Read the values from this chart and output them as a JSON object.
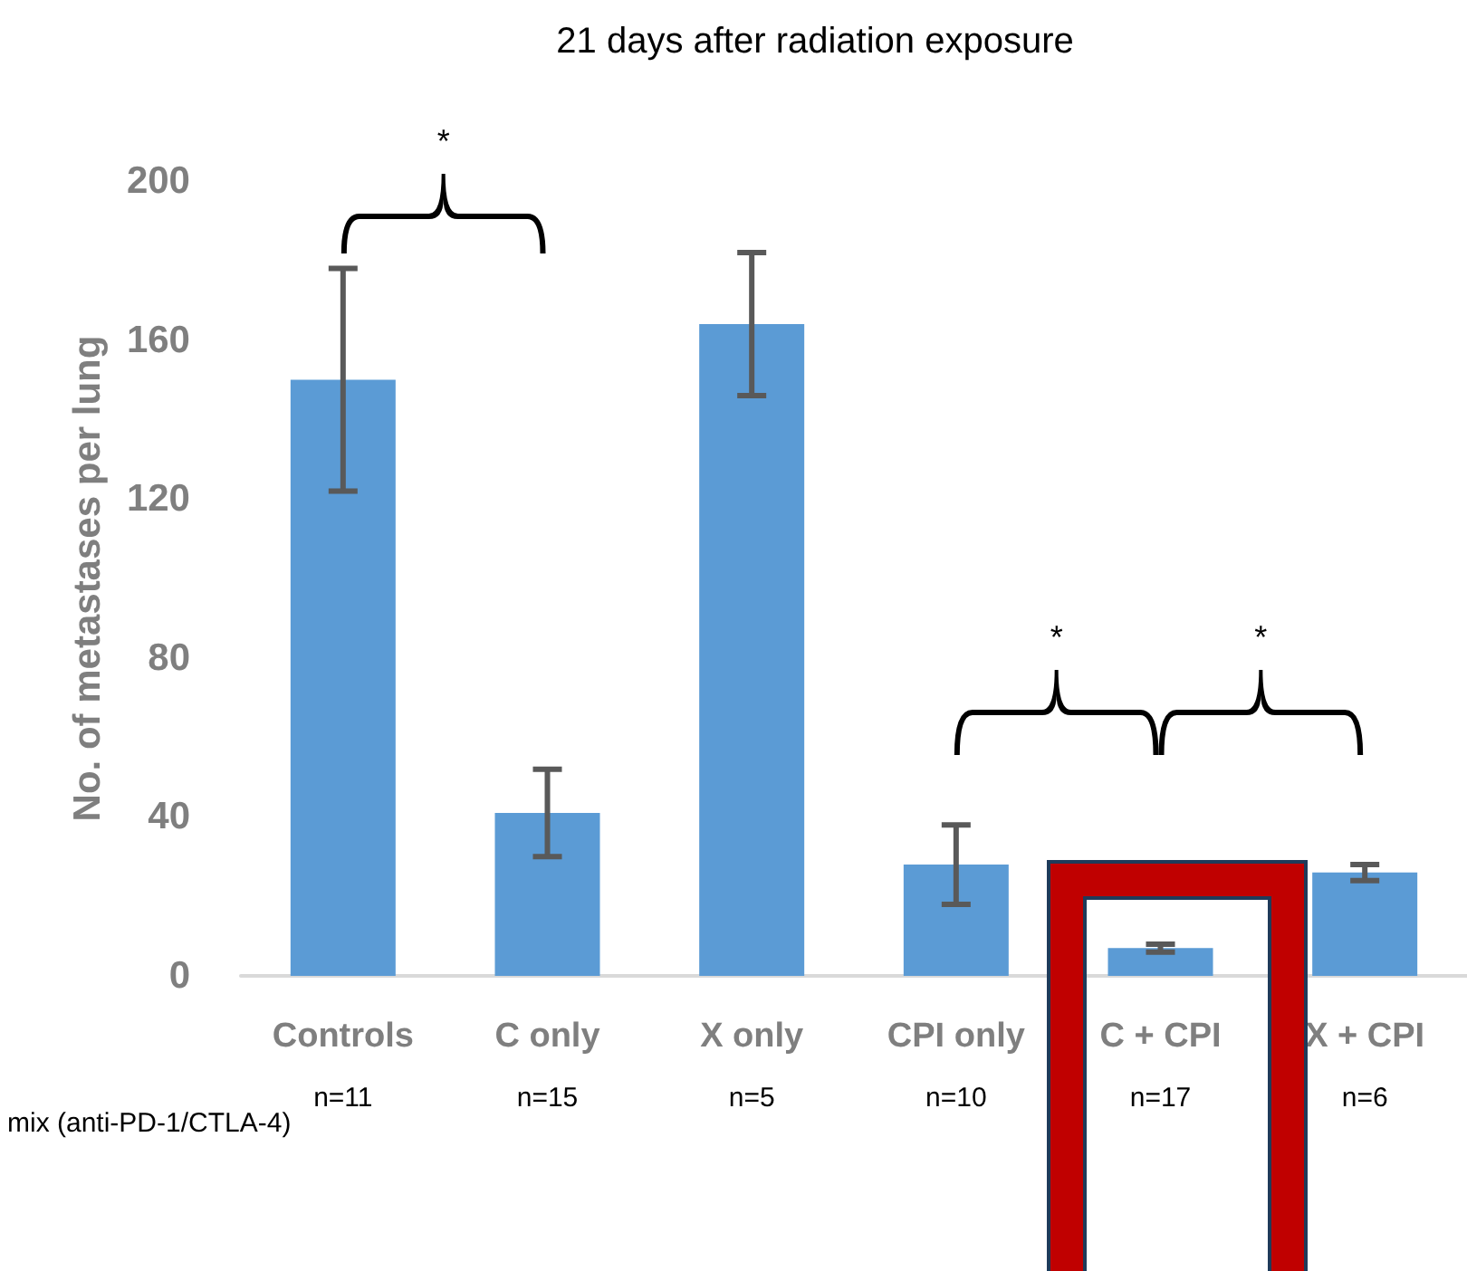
{
  "chart_data": {
    "type": "bar",
    "title": "21 days after radiation exposure",
    "ylabel": "No. of metastases per lung",
    "categories": [
      "Controls",
      "C only",
      "X only",
      "CPI only",
      "C + CPI",
      "X + CPI"
    ],
    "values": [
      150,
      41,
      164,
      28,
      7,
      26
    ],
    "errors": [
      28,
      11,
      18,
      10,
      1,
      2
    ],
    "color": "#5b9bd5",
    "ylim": [
      0,
      200
    ],
    "yticks": [
      0,
      40,
      80,
      120,
      160,
      200
    ],
    "grid": false,
    "annotations": [
      "*",
      "*",
      "*",
      "n=11",
      "n=15",
      "n=5",
      "n=10",
      "n=17",
      "n=6",
      "mix (anti-PD-1/CTLA-4)"
    ]
  }
}
